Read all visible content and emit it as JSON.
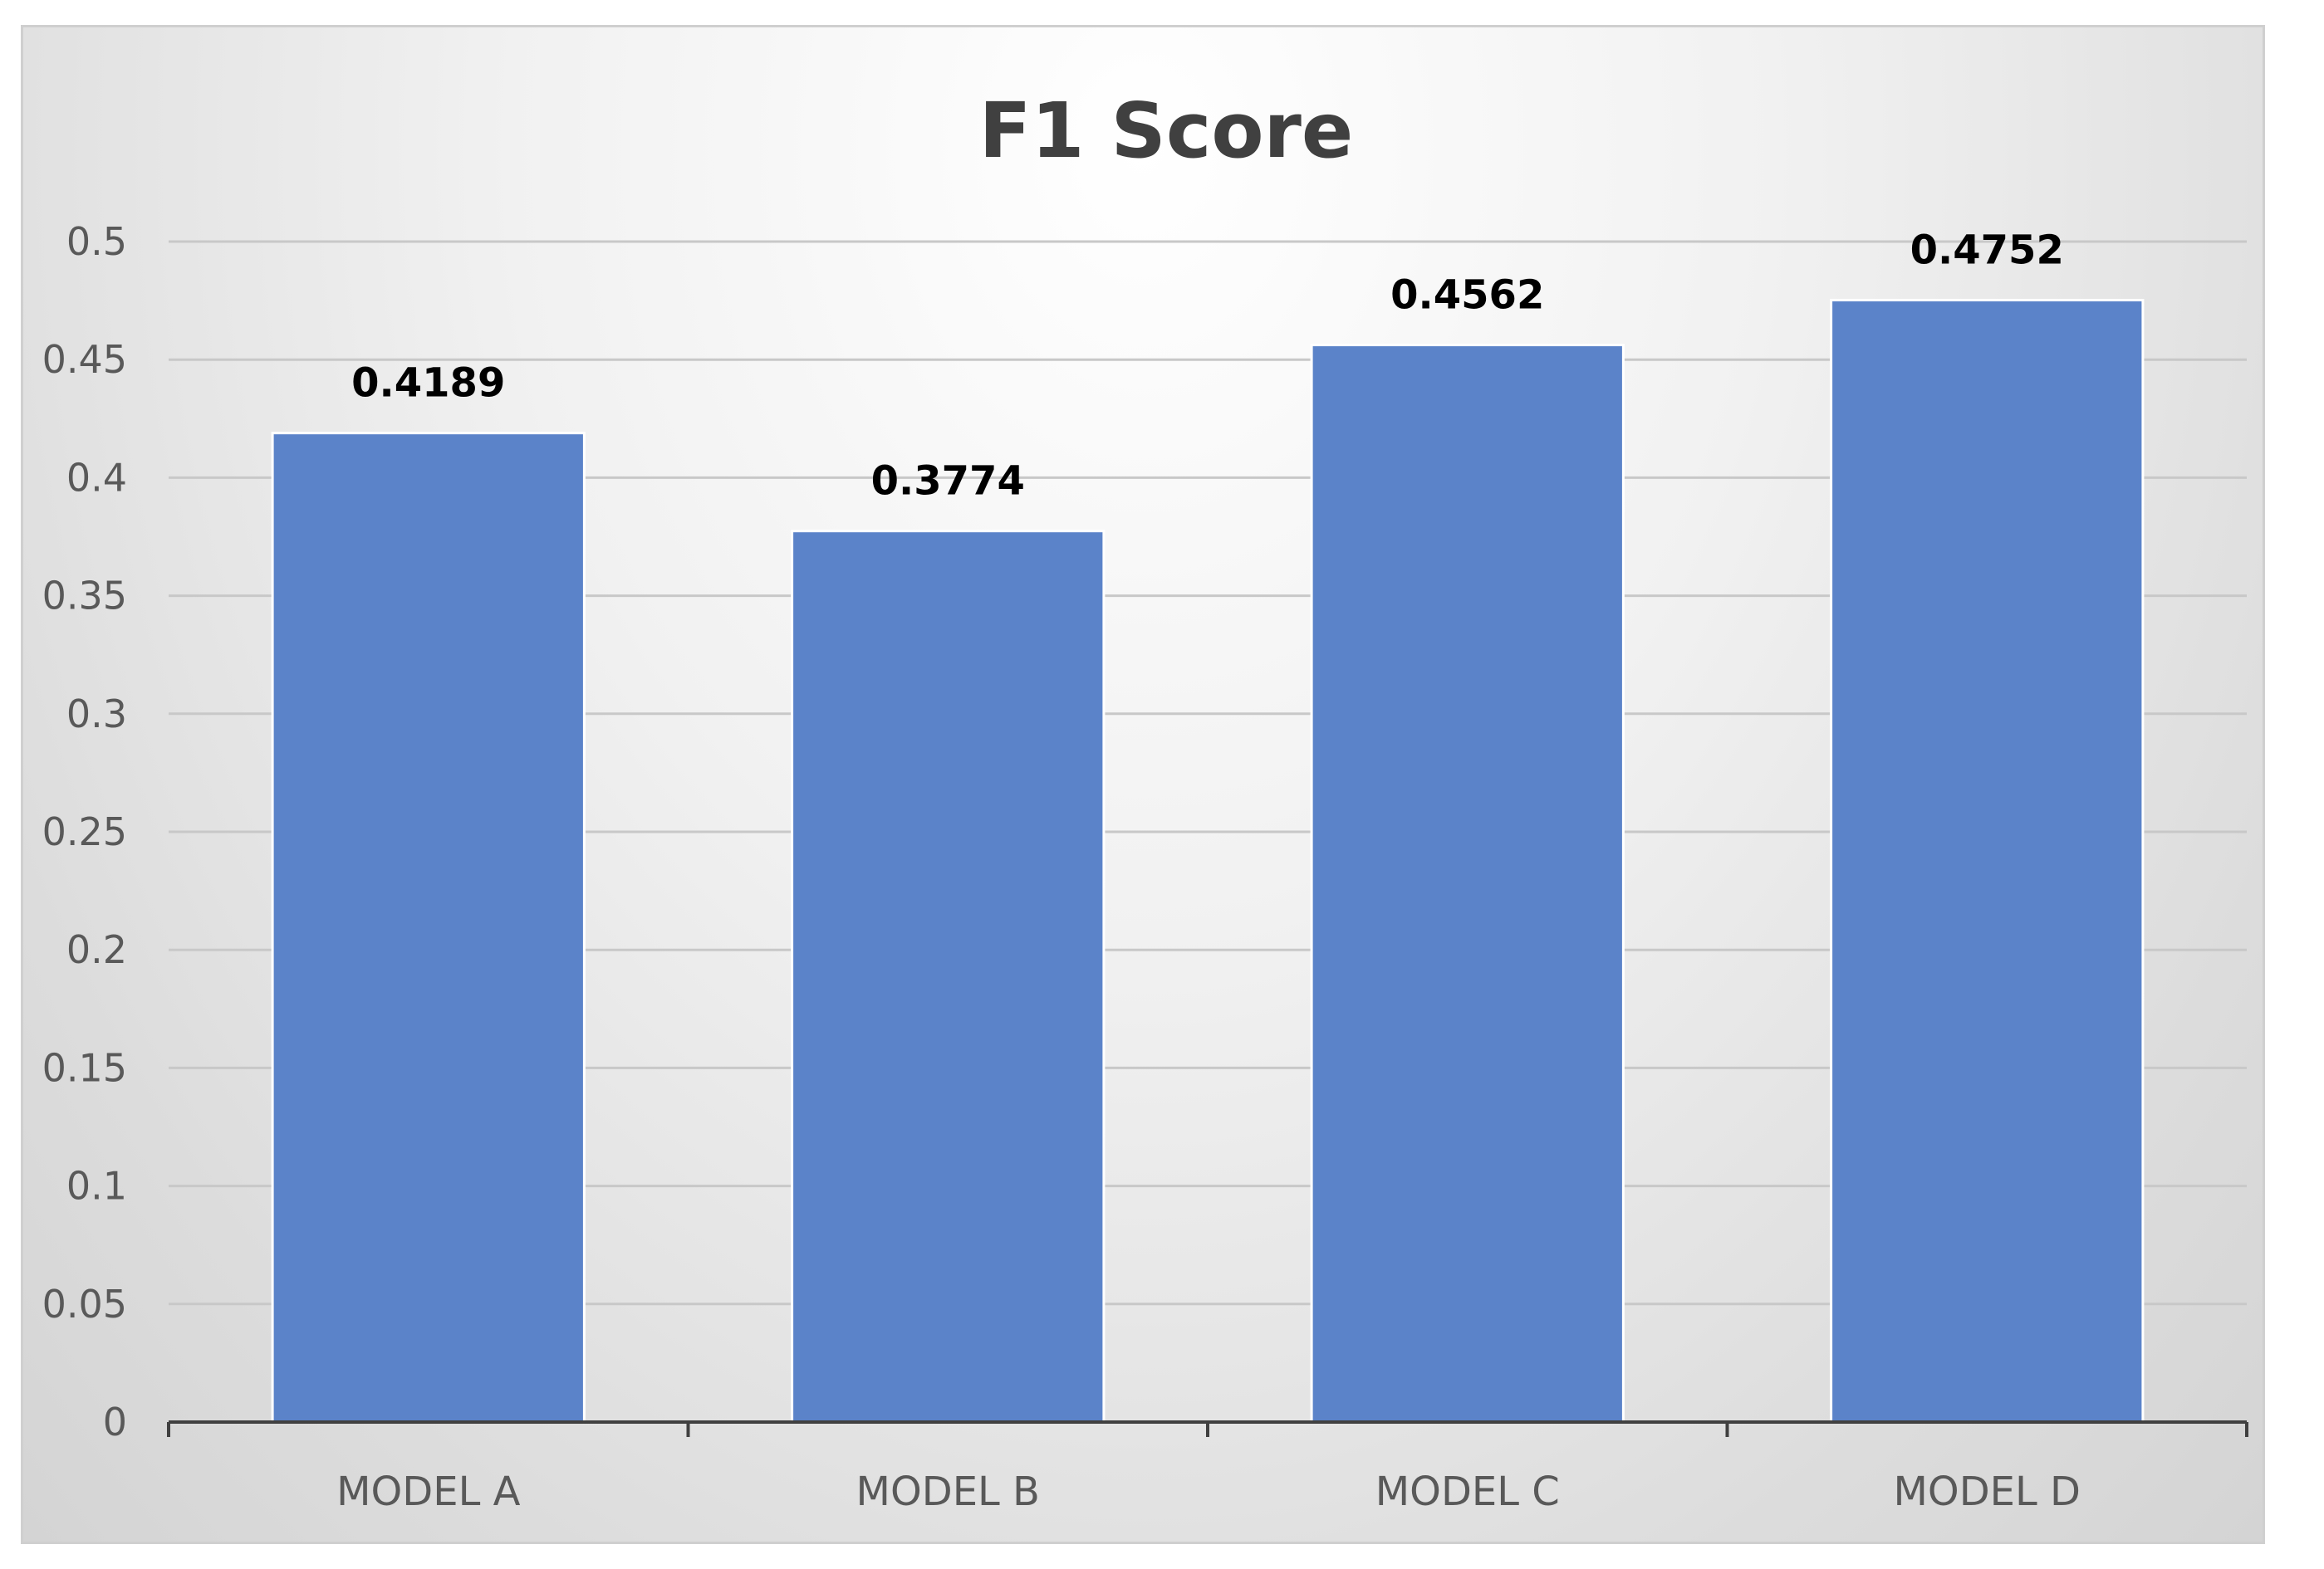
{
  "chart_data": {
    "type": "bar",
    "title": "F1 Score",
    "xlabel": "",
    "ylabel": "",
    "categories": [
      "MODEL A",
      "MODEL B",
      "MODEL C",
      "MODEL D"
    ],
    "values": [
      0.4189,
      0.3774,
      0.4562,
      0.4752
    ],
    "value_labels": [
      "0.4189",
      "0.3774",
      "0.4562",
      "0.4752"
    ],
    "yticks": [
      "0",
      "0.05",
      "0.1",
      "0.15",
      "0.2",
      "0.25",
      "0.3",
      "0.35",
      "0.4",
      "0.45",
      "0.5"
    ],
    "ylim": [
      0,
      0.5
    ],
    "grid": true,
    "legend": "none",
    "colors": {
      "bar": "#5b83c9",
      "bar_edge": "#ffffff",
      "gridline": "#c8c8c8",
      "axis": "#404040"
    }
  }
}
